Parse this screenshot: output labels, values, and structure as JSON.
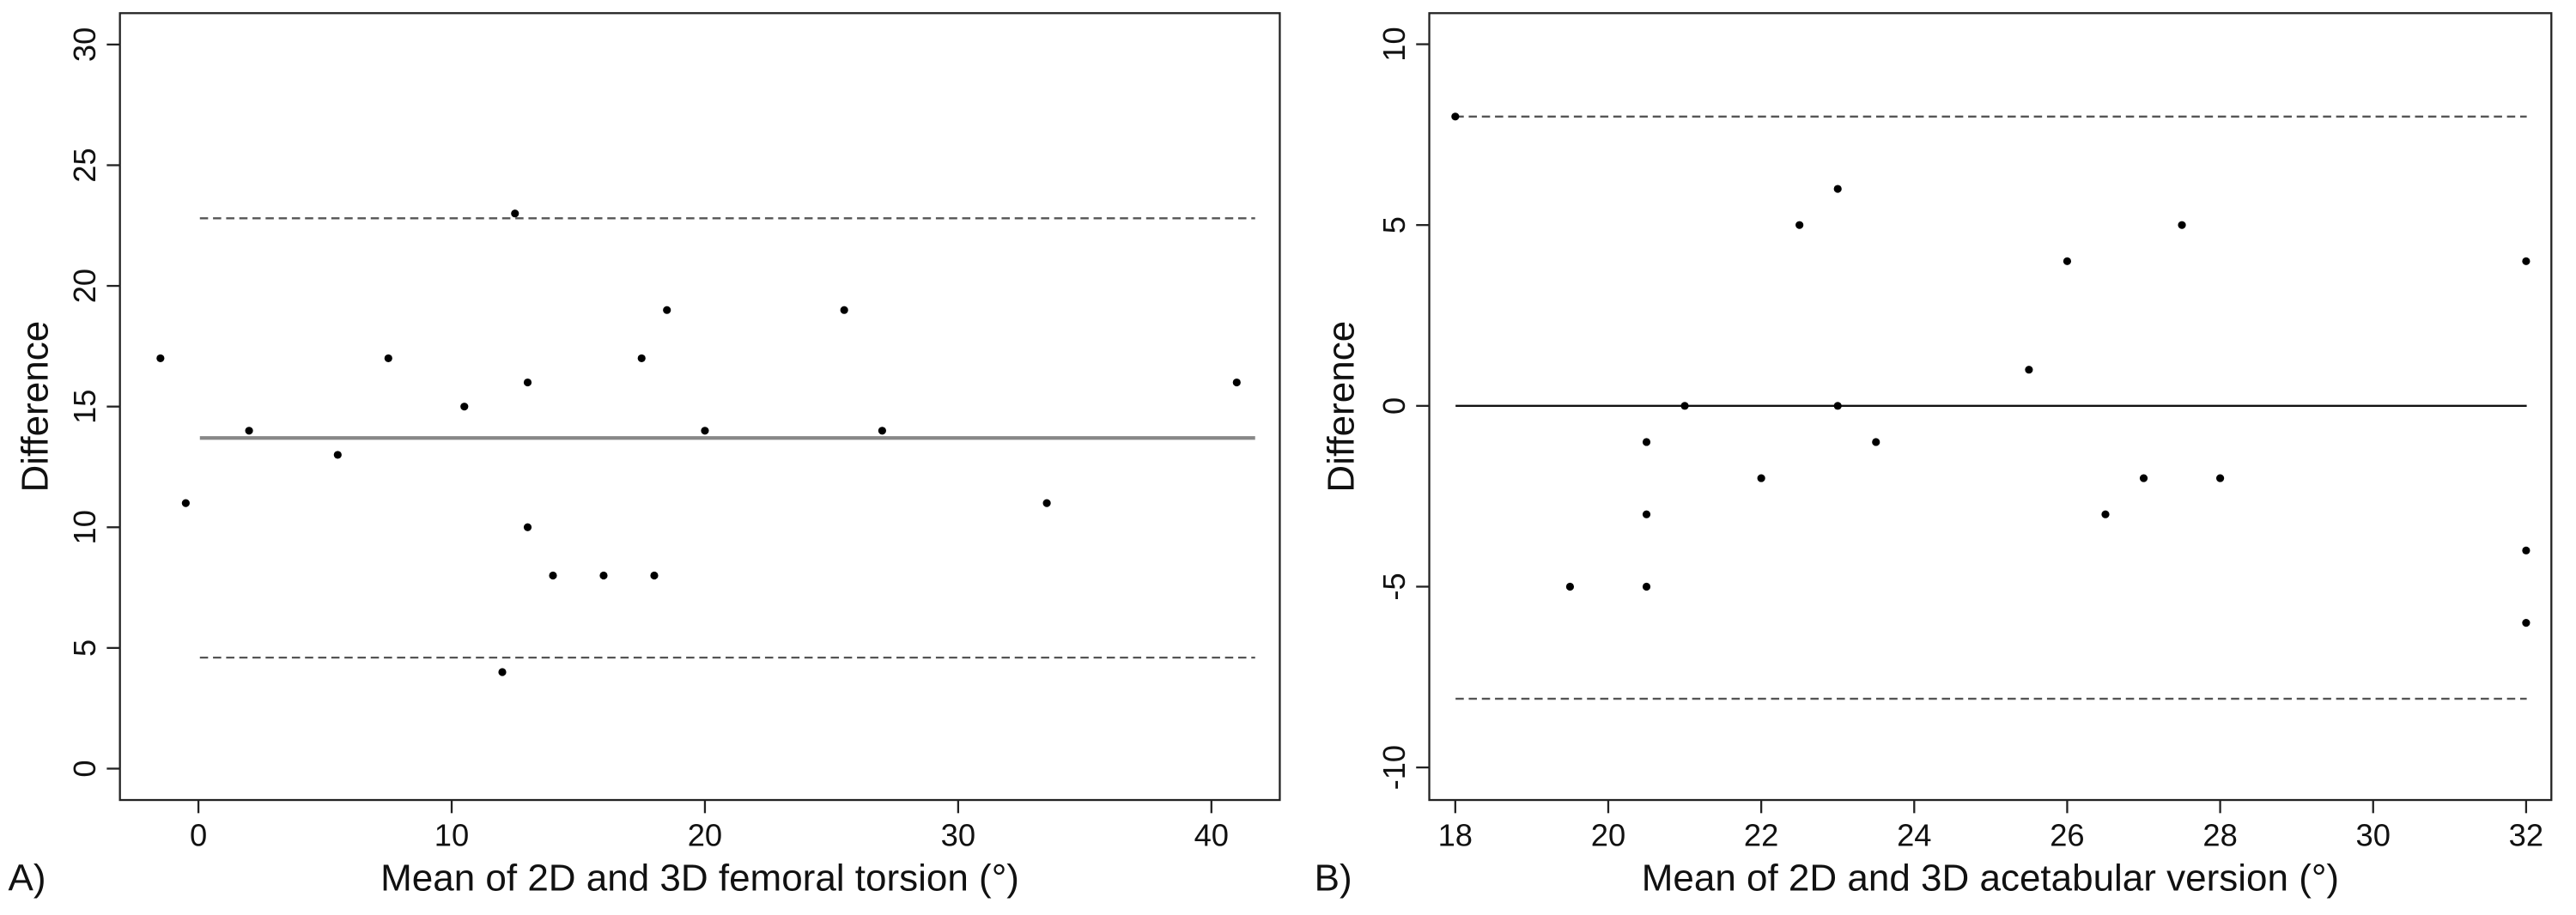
{
  "chart_data": [
    {
      "type": "scatter",
      "panel_label": "A)",
      "xlabel": "Mean of 2D and 3D femoral torsion (°)",
      "ylabel": "Difference",
      "x": [
        -1.5,
        -0.5,
        2,
        5.5,
        7.5,
        10.5,
        12.5,
        13,
        13,
        14,
        12,
        16,
        17.5,
        18,
        18.5,
        20,
        25.5,
        27,
        33.5,
        41
      ],
      "values": [
        17,
        11,
        14,
        13,
        17,
        15,
        23,
        16,
        10,
        8,
        4,
        8,
        17,
        8,
        19,
        14,
        19,
        14,
        11,
        16
      ],
      "color": "#000000",
      "xlim": [
        -3.1,
        42.7
      ],
      "xticks": [
        0,
        10,
        20,
        30,
        40
      ],
      "ylim": [
        -1.3,
        31.3
      ],
      "yticks": [
        0,
        5,
        10,
        15,
        20,
        25,
        30
      ],
      "lines": [
        {
          "value": 13.7,
          "style": "solid",
          "color": "#888888"
        },
        {
          "value": 22.8,
          "style": "dashed",
          "color": "#555555"
        },
        {
          "value": 4.6,
          "style": "dashed",
          "color": "#555555"
        }
      ]
    },
    {
      "type": "scatter",
      "panel_label": "B)",
      "xlabel": "Mean of 2D and 3D acetabular version (°)",
      "ylabel": "Difference",
      "x": [
        18,
        19.5,
        20.5,
        20.5,
        20.5,
        21,
        22,
        22.5,
        23,
        23,
        23.5,
        25.5,
        26,
        26.5,
        27,
        27.5,
        28,
        32,
        32,
        32
      ],
      "values": [
        8,
        -5,
        -1,
        -3,
        -5,
        0,
        -2,
        5,
        6,
        0,
        -1,
        1,
        4,
        -3,
        -2,
        5,
        -2,
        4,
        -4,
        -6
      ],
      "color": "#000000",
      "xlim": [
        17.66,
        32.33
      ],
      "xticks": [
        18,
        20,
        22,
        24,
        26,
        28,
        30,
        32
      ],
      "ylim": [
        -10.9,
        10.86
      ],
      "yticks": [
        -10,
        -5,
        0,
        5,
        10
      ],
      "lines": [
        {
          "value": 0,
          "style": "solid",
          "color": "#111111"
        },
        {
          "value": 8,
          "style": "dashed",
          "color": "#555555"
        },
        {
          "value": -8.1,
          "style": "dashed",
          "color": "#555555"
        }
      ]
    }
  ]
}
